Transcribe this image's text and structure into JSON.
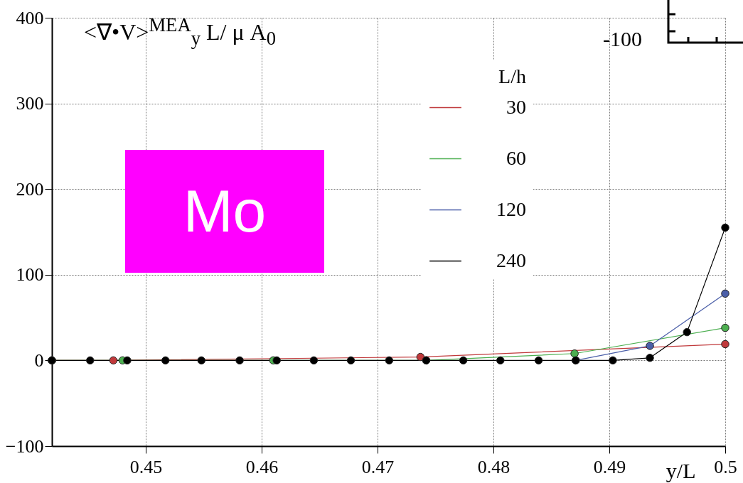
{
  "chart_data": {
    "type": "line",
    "title": "<∇•V>$^{MEA}$$_{y}$ L/ μ A$_{0}$",
    "xlabel": "y/L",
    "legend_title": "L/h",
    "legend": "top right",
    "grid": true,
    "marker": "circle",
    "line_style": "solid",
    "xlim": [
      0.4419,
      0.5
    ],
    "xticks": [
      0.45,
      0.46,
      0.47,
      0.48,
      0.49,
      {
        "value": 0.5,
        "label": "0.5"
      }
    ],
    "ylim": [
      -100,
      400
    ],
    "yticks": [
      -100,
      0,
      100,
      200,
      300,
      400
    ],
    "annotations": [
      "Mo",
      "-100"
    ],
    "series": [
      {
        "name": "30",
        "color": "#c0393b",
        "x": [
          0.4419,
          0.4472,
          0.4737,
          0.5
        ],
        "values": [
          0,
          0,
          4,
          19
        ]
      },
      {
        "name": "60",
        "color": "#4caf50",
        "x": [
          0.4419,
          0.448,
          0.461,
          0.4742,
          0.487,
          0.5
        ],
        "values": [
          0,
          0,
          0,
          0,
          8,
          38
        ]
      },
      {
        "name": "120",
        "color": "#4a5ea8",
        "x": [
          0.4871,
          0.4935,
          0.5
        ],
        "values": [
          0,
          17,
          78
        ]
      },
      {
        "name": "240",
        "color": "#000000",
        "x": [
          0.4419,
          0.4452,
          0.4484,
          0.4517,
          0.4548,
          0.4581,
          0.4613,
          0.4645,
          0.4677,
          0.471,
          0.4742,
          0.4774,
          0.4806,
          0.4839,
          0.4871,
          0.4903,
          0.4935,
          0.4967,
          0.5
        ],
        "values": [
          0,
          0,
          0,
          0,
          0,
          0,
          0,
          0,
          0,
          0,
          0,
          0,
          0,
          0,
          0,
          0,
          3,
          33,
          155
        ]
      }
    ]
  }
}
